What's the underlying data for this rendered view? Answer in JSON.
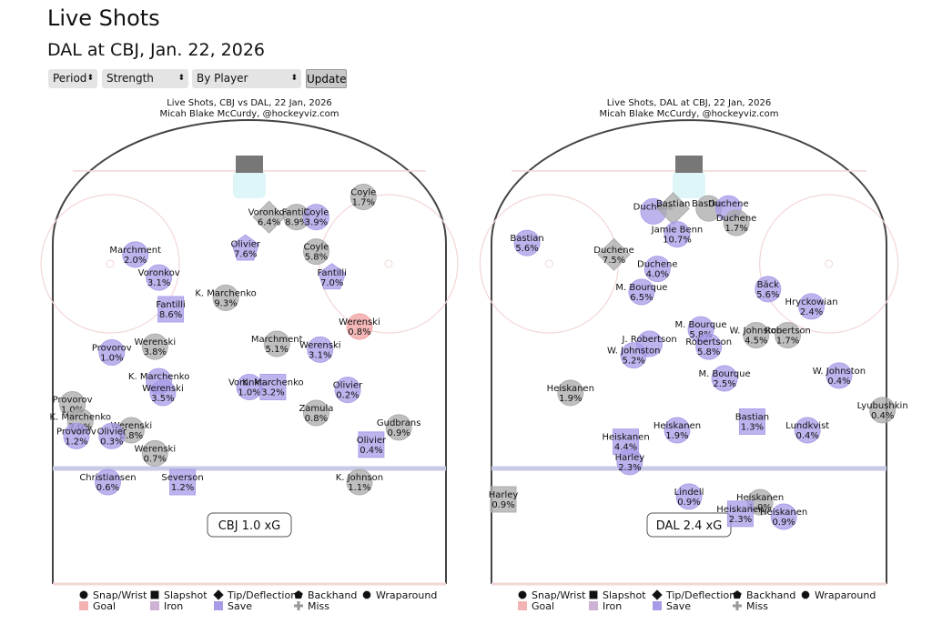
{
  "page": {
    "title": "Live Shots",
    "subtitle": "DAL at CBJ, Jan. 22, 2026"
  },
  "controls": {
    "period": "Period",
    "strength": "Strength",
    "mode": "By Player",
    "update": "Update"
  },
  "colors": {
    "goal": "#f2a0a0",
    "save": "#a79be8",
    "miss": "#a9a9a9",
    "iron": "#cdb2d6",
    "board": "#444444",
    "blue_line": "#c8cbe6",
    "red_line": "#f3d6d6",
    "net": "#777777",
    "crease": "#dff6f8"
  },
  "legend": {
    "shape_items": [
      {
        "label": "Snap/Wrist",
        "icon": "circle"
      },
      {
        "label": "Slapshot",
        "icon": "square"
      },
      {
        "label": "Tip/Deflection",
        "icon": "diamond"
      },
      {
        "label": "Backhand",
        "icon": "pentagon"
      },
      {
        "label": "Wraparound",
        "icon": "octagon"
      }
    ],
    "result_items": [
      {
        "label": "Goal",
        "icon": "pink-square"
      },
      {
        "label": "Iron",
        "icon": "purple-square"
      },
      {
        "label": "Save",
        "icon": "blue-square"
      },
      {
        "label": "Miss",
        "icon": "grey-plus"
      }
    ]
  },
  "chart_data": [
    {
      "type": "scatter",
      "title": "Live Shots, CBJ vs DAL, 22 Jan, 2026",
      "subtitle": "Micah Blake McCurdy, @hockeyviz.com",
      "xg_label": "CBJ 1.0 xG",
      "shots": [
        {
          "player": "Coyle",
          "xg": "1.7%",
          "x": 29,
          "y": 9,
          "shape": "circle",
          "result": "miss"
        },
        {
          "player": "Voronkov",
          "xg": "6.4%",
          "x": 5,
          "y": 16,
          "shape": "diamond",
          "result": "miss"
        },
        {
          "player": "Fantilli",
          "xg": "8.9%",
          "x": 12,
          "y": 16,
          "shape": "circle",
          "result": "miss"
        },
        {
          "player": "Coyle",
          "xg": "3.9%",
          "x": 17,
          "y": 16,
          "shape": "circle",
          "result": "save"
        },
        {
          "player": "Marchment",
          "xg": "2.0%",
          "x": -29,
          "y": 29,
          "shape": "circle",
          "result": "save"
        },
        {
          "player": "Olivier",
          "xg": "7.6%",
          "x": -1,
          "y": 27,
          "shape": "pentagon",
          "result": "save"
        },
        {
          "player": "Coyle",
          "xg": "5.8%",
          "x": 17,
          "y": 28,
          "shape": "circle",
          "result": "miss"
        },
        {
          "player": "Voronkov",
          "xg": "3.1%",
          "x": -23,
          "y": 37,
          "shape": "circle",
          "result": "save"
        },
        {
          "player": "Fantilli",
          "xg": "7.0%",
          "x": 21,
          "y": 37,
          "shape": "pentagon",
          "result": "save"
        },
        {
          "player": "Fantilli",
          "xg": "8.6%",
          "x": -20,
          "y": 48,
          "shape": "square",
          "result": "save"
        },
        {
          "player": "K. Marchenko",
          "xg": "9.3%",
          "x": -6,
          "y": 44,
          "shape": "circle",
          "result": "miss"
        },
        {
          "player": "Werenski",
          "xg": "0.8%",
          "x": 28,
          "y": 54,
          "shape": "circle",
          "result": "goal"
        },
        {
          "player": "Werenski",
          "xg": "3.8%",
          "x": -24,
          "y": 61,
          "shape": "circle",
          "result": "miss"
        },
        {
          "player": "Marchment",
          "xg": "5.1%",
          "x": 7,
          "y": 60,
          "shape": "circle",
          "result": "miss"
        },
        {
          "player": "Werenski",
          "xg": "3.1%",
          "x": 18,
          "y": 62,
          "shape": "circle",
          "result": "save"
        },
        {
          "player": "Provorov",
          "xg": "1.0%",
          "x": -35,
          "y": 63,
          "shape": "circle",
          "result": "save"
        },
        {
          "player": "K. Marchenko",
          "xg": "",
          "x": -23,
          "y": 73,
          "shape": "circle",
          "result": "save"
        },
        {
          "player": "Werenski",
          "xg": "3.5%",
          "x": -22,
          "y": 77,
          "shape": "circle",
          "result": "save"
        },
        {
          "player": "Voronkov",
          "xg": "1.0%",
          "x": 0,
          "y": 75,
          "shape": "circle",
          "result": "save"
        },
        {
          "player": "K. Marchenko",
          "xg": "3.2%",
          "x": 6,
          "y": 75,
          "shape": "square",
          "result": "save"
        },
        {
          "player": "Olivier",
          "xg": "0.2%",
          "x": 25,
          "y": 76,
          "shape": "circle",
          "result": "save"
        },
        {
          "player": "Zamula",
          "xg": "0.8%",
          "x": 17,
          "y": 84,
          "shape": "circle",
          "result": "miss"
        },
        {
          "player": "Provorov",
          "xg": "1.0%",
          "x": -45,
          "y": 81,
          "shape": "circle",
          "result": "miss"
        },
        {
          "player": "K. Marchenko",
          "xg": "7.0%",
          "x": -43,
          "y": 87,
          "shape": "circle",
          "result": "miss"
        },
        {
          "player": "Werenski",
          "xg": "0.8%",
          "x": -30,
          "y": 90,
          "shape": "circle",
          "result": "miss"
        },
        {
          "player": "Olivier",
          "xg": "0.3%",
          "x": -35,
          "y": 92,
          "shape": "circle",
          "result": "save"
        },
        {
          "player": "Provorov",
          "xg": "1.2%",
          "x": -44,
          "y": 92,
          "shape": "circle",
          "result": "save"
        },
        {
          "player": "Gudbrans",
          "xg": "0.9%",
          "x": 38,
          "y": 89,
          "shape": "circle",
          "result": "miss"
        },
        {
          "player": "Werenski",
          "xg": "0.7%",
          "x": -24,
          "y": 98,
          "shape": "circle",
          "result": "miss"
        },
        {
          "player": "Olivier",
          "xg": "0.4%",
          "x": 31,
          "y": 95,
          "shape": "square",
          "result": "save"
        },
        {
          "player": "Christiansen",
          "xg": "0.6%",
          "x": -36,
          "y": 108,
          "shape": "circle",
          "result": "save"
        },
        {
          "player": "Severson",
          "xg": "1.2%",
          "x": -17,
          "y": 108,
          "shape": "square",
          "result": "save"
        },
        {
          "player": "K. Johnson",
          "xg": "1.1%",
          "x": 28,
          "y": 108,
          "shape": "circle",
          "result": "miss"
        }
      ]
    },
    {
      "type": "scatter",
      "title": "Live Shots, DAL at CBJ, 22 Jan, 2026",
      "subtitle": "Micah Blake McCurdy, @hockeyviz.com",
      "xg_label": "DAL 2.4 xG",
      "shots": [
        {
          "player": "Duchene",
          "xg": "",
          "x": -9,
          "y": 14,
          "shape": "circle",
          "result": "save"
        },
        {
          "player": "Bastian",
          "xg": "",
          "x": -4,
          "y": 13,
          "shape": "diamond",
          "result": "miss"
        },
        {
          "player": "Bastian",
          "xg": "",
          "x": 5,
          "y": 13,
          "shape": "circle",
          "result": "miss"
        },
        {
          "player": "Duchene",
          "xg": "",
          "x": 10,
          "y": 13,
          "shape": "circle",
          "result": "save"
        },
        {
          "player": "Duchene",
          "xg": "1.7%",
          "x": 12,
          "y": 18,
          "shape": "circle",
          "result": "miss"
        },
        {
          "player": "Jamie Benn",
          "xg": "10.7%",
          "x": -3,
          "y": 22,
          "shape": "circle",
          "result": "save"
        },
        {
          "player": "Bastian",
          "xg": "5.6%",
          "x": -41,
          "y": 25,
          "shape": "circle",
          "result": "save"
        },
        {
          "player": "Duchene",
          "xg": "7.5%",
          "x": -19,
          "y": 29,
          "shape": "diamond",
          "result": "miss"
        },
        {
          "player": "Duchene",
          "xg": "4.0%",
          "x": -8,
          "y": 34,
          "shape": "circle",
          "result": "save"
        },
        {
          "player": "M. Bourque",
          "xg": "6.5%",
          "x": -12,
          "y": 42,
          "shape": "circle",
          "result": "save"
        },
        {
          "player": "Bäck",
          "xg": "5.6%",
          "x": 20,
          "y": 41,
          "shape": "circle",
          "result": "save"
        },
        {
          "player": "Hryckowian",
          "xg": "2.4%",
          "x": 31,
          "y": 47,
          "shape": "circle",
          "result": "save"
        },
        {
          "player": "M. Bourque",
          "xg": "5.8%",
          "x": 3,
          "y": 55,
          "shape": "circle",
          "result": "save"
        },
        {
          "player": "W. Johnston",
          "xg": "4.5%",
          "x": 17,
          "y": 57,
          "shape": "circle",
          "result": "miss"
        },
        {
          "player": "Robertson",
          "xg": "1.7%",
          "x": 25,
          "y": 57,
          "shape": "circle",
          "result": "miss"
        },
        {
          "player": "J. Robertson",
          "xg": "",
          "x": -10,
          "y": 60,
          "shape": "circle",
          "result": "save"
        },
        {
          "player": "W. Johnston",
          "xg": "5.2%",
          "x": -14,
          "y": 64,
          "shape": "circle",
          "result": "save"
        },
        {
          "player": "Robertson",
          "xg": "5.8%",
          "x": 5,
          "y": 61,
          "shape": "circle",
          "result": "save"
        },
        {
          "player": "M. Bourque",
          "xg": "2.5%",
          "x": 9,
          "y": 72,
          "shape": "circle",
          "result": "save"
        },
        {
          "player": "W. Johnston",
          "xg": "0.4%",
          "x": 38,
          "y": 71,
          "shape": "circle",
          "result": "save"
        },
        {
          "player": "Heiskanen",
          "xg": "1.9%",
          "x": -30,
          "y": 77,
          "shape": "circle",
          "result": "miss"
        },
        {
          "player": "Lyubushkin",
          "xg": "0.4%",
          "x": 49,
          "y": 83,
          "shape": "circle",
          "result": "miss"
        },
        {
          "player": "Bastian",
          "xg": "1.3%",
          "x": 16,
          "y": 87,
          "shape": "square",
          "result": "save"
        },
        {
          "player": "Heiskanen",
          "xg": "1.9%",
          "x": -3,
          "y": 90,
          "shape": "circle",
          "result": "save"
        },
        {
          "player": "Lundkvist",
          "xg": "0.4%",
          "x": 30,
          "y": 90,
          "shape": "circle",
          "result": "save"
        },
        {
          "player": "Heiskanen",
          "xg": "4.4%",
          "x": -16,
          "y": 94,
          "shape": "square",
          "result": "save"
        },
        {
          "player": "Harley",
          "xg": "2.3%",
          "x": -15,
          "y": 101,
          "shape": "circle",
          "result": "save"
        },
        {
          "player": "Harley",
          "xg": "0.9%",
          "x": -47,
          "y": 114,
          "shape": "square",
          "result": "miss"
        },
        {
          "player": "Lindell",
          "xg": "0.9%",
          "x": 0,
          "y": 113,
          "shape": "circle",
          "result": "save"
        },
        {
          "player": "Heiskanen",
          "xg": "1.0%",
          "x": 18,
          "y": 115,
          "shape": "circle",
          "result": "miss"
        },
        {
          "player": "Heiskanen",
          "xg": "2.3%",
          "x": 13,
          "y": 119,
          "shape": "square",
          "result": "save"
        },
        {
          "player": "Heiskanen",
          "xg": "0.9%",
          "x": 24,
          "y": 120,
          "shape": "circle",
          "result": "save"
        }
      ]
    }
  ]
}
